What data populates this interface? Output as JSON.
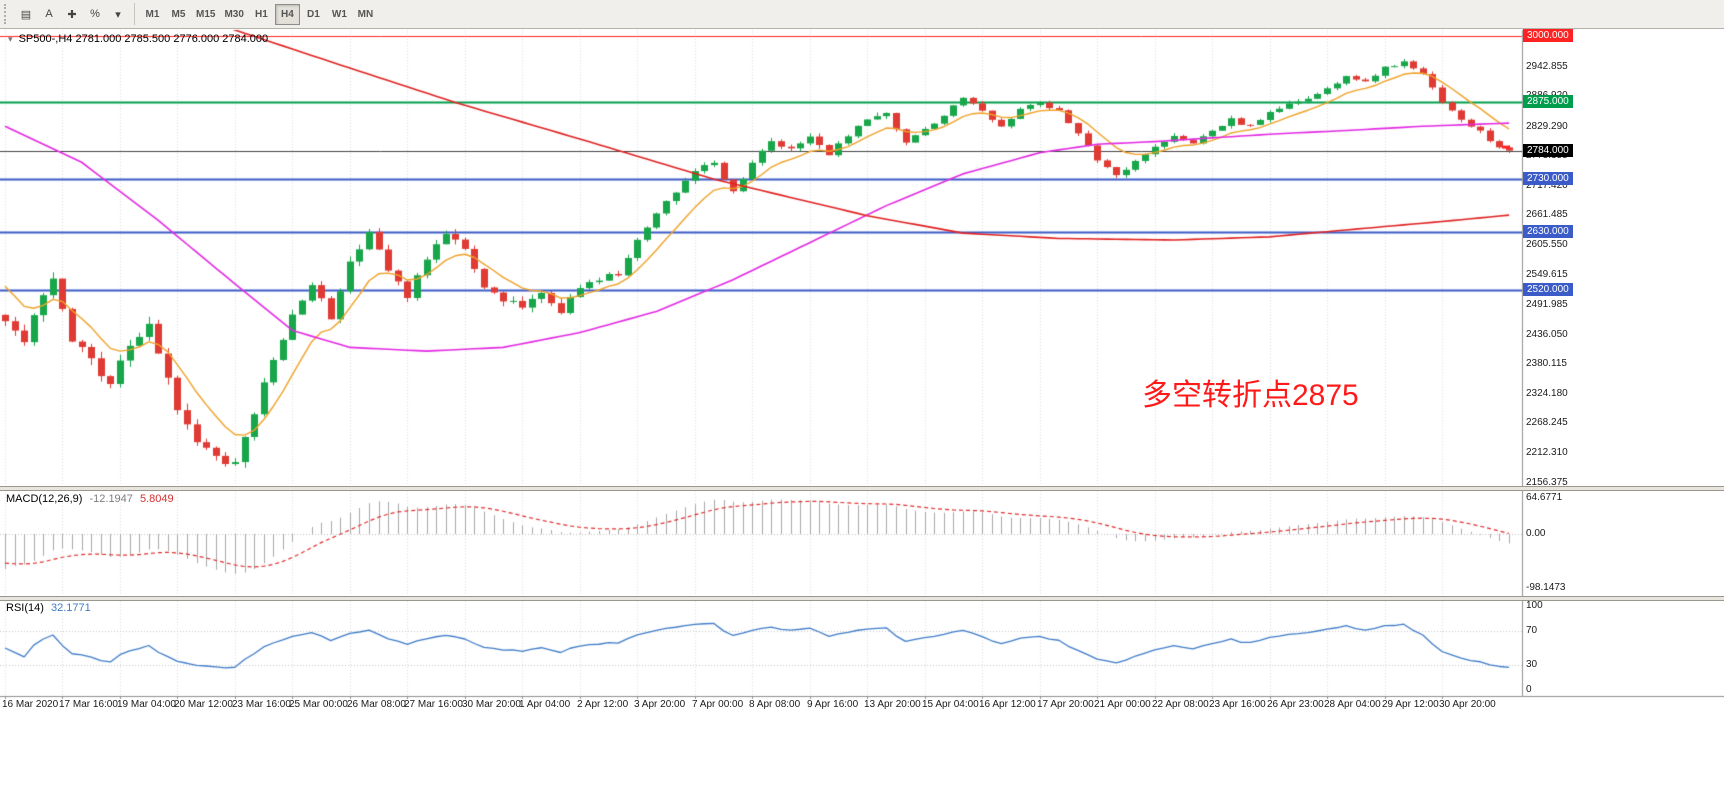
{
  "toolbar": {
    "tool_buttons": [
      {
        "name": "chart-templates-icon",
        "glyph": "▤"
      },
      {
        "name": "text-tool-icon",
        "glyph": "A"
      },
      {
        "name": "crosshair-icon",
        "glyph": "✚"
      },
      {
        "name": "percent-scale-icon",
        "glyph": "%"
      },
      {
        "name": "dropdown-caret-icon",
        "glyph": "▾"
      }
    ],
    "timeframes": [
      {
        "label": "M1",
        "active": false
      },
      {
        "label": "M5",
        "active": false
      },
      {
        "label": "M15",
        "active": false
      },
      {
        "label": "M30",
        "active": false
      },
      {
        "label": "H1",
        "active": false
      },
      {
        "label": "H4",
        "active": true
      },
      {
        "label": "D1",
        "active": false
      },
      {
        "label": "W1",
        "active": false
      },
      {
        "label": "MN",
        "active": false
      }
    ]
  },
  "info_line": {
    "icon": "▾",
    "symbol": "SP500-,H4",
    "ohlc": "2781.000 2785.500 2776.000 2784.000"
  },
  "annotation": {
    "text": "多空转折点2875",
    "color": "#ff1a1a"
  },
  "panels": {
    "macd": {
      "name": "MACD(12,26,9)",
      "main_value": "-12.1947",
      "signal_value": "5.8049",
      "axis": [
        {
          "text": "64.6771",
          "value": 64.6771
        },
        {
          "text": "0.00",
          "value": 0
        },
        {
          "text": "-98.1473",
          "value": -98.1473
        }
      ]
    },
    "rsi": {
      "name": "RSI(14)",
      "value": "32.1771",
      "axis": [
        {
          "text": "100",
          "value": 100
        },
        {
          "text": "70",
          "value": 70
        },
        {
          "text": "30",
          "value": 30
        },
        {
          "text": "0",
          "value": 0
        }
      ]
    }
  },
  "price_axis": {
    "labels": [
      "2942.855",
      "2886.920",
      "2829.290",
      "2773.355",
      "2717.420",
      "2661.485",
      "2605.550",
      "2549.615",
      "2491.985",
      "2436.050",
      "2380.115",
      "2324.180",
      "2268.245",
      "2212.310",
      "2156.375"
    ]
  },
  "time_axis": {
    "labels": [
      "16 Mar 2020",
      "17 Mar 16:00",
      "19 Mar 04:00",
      "20 Mar 12:00",
      "23 Mar 16:00",
      "25 Mar 00:00",
      "26 Mar 08:00",
      "27 Mar 16:00",
      "30 Mar 20:00",
      "1 Apr 04:00",
      "2 Apr 12:00",
      "3 Apr 20:00",
      "7 Apr 00:00",
      "8 Apr 08:00",
      "9 Apr 16:00",
      "13 Apr 20:00",
      "15 Apr 04:00",
      "16 Apr 12:00",
      "17 Apr 20:00",
      "21 Apr 00:00",
      "22 Apr 08:00",
      "23 Apr 16:00",
      "26 Apr 23:00",
      "28 Apr 04:00",
      "29 Apr 12:00",
      "30 Apr 20:00"
    ],
    "tick_indices": [
      0,
      6,
      12,
      18,
      24,
      30,
      36,
      42,
      48,
      54,
      60,
      66,
      72,
      78,
      84,
      90,
      96,
      102,
      108,
      114,
      120,
      126,
      132,
      138,
      144,
      150
    ]
  },
  "chart_data": {
    "type": "candlestick",
    "symbol": "SP500-",
    "timeframe": "H4",
    "bars": 158,
    "price_range": {
      "min": 2150,
      "max": 3012
    },
    "macd_range": {
      "min": -112,
      "max": 78
    },
    "rsi_range": {
      "min": -6,
      "max": 106
    },
    "ohlc_last": {
      "open": 2781.0,
      "high": 2785.5,
      "low": 2776.0,
      "close": 2784.0
    },
    "current_price": {
      "value": 2784.0,
      "label": "2784.000",
      "color": "#000000"
    },
    "hlines": [
      {
        "price": 3000,
        "color": "#ff2222",
        "width": 1,
        "label": "3000.000"
      },
      {
        "price": 2875,
        "color": "#009e4c",
        "width": 2,
        "label": "2875.000"
      },
      {
        "price": 2730,
        "color": "#3a5bc8",
        "width": 2,
        "label": "2730.000"
      },
      {
        "price": 2630,
        "color": "#3a5bc8",
        "width": 2,
        "label": "2630.000"
      },
      {
        "price": 2520,
        "color": "#3a5bc8",
        "width": 2,
        "label": "2520.000"
      }
    ],
    "close_anchors": [
      [
        0,
        2470
      ],
      [
        2,
        2420
      ],
      [
        3,
        2480
      ],
      [
        5,
        2545
      ],
      [
        7,
        2430
      ],
      [
        9,
        2390
      ],
      [
        11,
        2340
      ],
      [
        13,
        2420
      ],
      [
        15,
        2450
      ],
      [
        17,
        2360
      ],
      [
        18,
        2300
      ],
      [
        20,
        2240
      ],
      [
        22,
        2205
      ],
      [
        24,
        2195
      ],
      [
        26,
        2290
      ],
      [
        28,
        2390
      ],
      [
        30,
        2470
      ],
      [
        32,
        2535
      ],
      [
        34,
        2470
      ],
      [
        36,
        2575
      ],
      [
        38,
        2630
      ],
      [
        40,
        2555
      ],
      [
        42,
        2510
      ],
      [
        44,
        2575
      ],
      [
        46,
        2632
      ],
      [
        48,
        2598
      ],
      [
        50,
        2525
      ],
      [
        52,
        2498
      ],
      [
        54,
        2492
      ],
      [
        56,
        2515
      ],
      [
        58,
        2478
      ],
      [
        60,
        2528
      ],
      [
        62,
        2542
      ],
      [
        64,
        2552
      ],
      [
        66,
        2612
      ],
      [
        68,
        2665
      ],
      [
        70,
        2705
      ],
      [
        72,
        2745
      ],
      [
        74,
        2762
      ],
      [
        76,
        2705
      ],
      [
        78,
        2762
      ],
      [
        80,
        2802
      ],
      [
        82,
        2788
      ],
      [
        84,
        2812
      ],
      [
        86,
        2778
      ],
      [
        88,
        2815
      ],
      [
        90,
        2842
      ],
      [
        92,
        2852
      ],
      [
        94,
        2798
      ],
      [
        96,
        2822
      ],
      [
        98,
        2852
      ],
      [
        100,
        2882
      ],
      [
        102,
        2858
      ],
      [
        104,
        2832
      ],
      [
        106,
        2862
      ],
      [
        108,
        2876
      ],
      [
        110,
        2858
      ],
      [
        112,
        2818
      ],
      [
        114,
        2768
      ],
      [
        116,
        2738
      ],
      [
        118,
        2762
      ],
      [
        120,
        2792
      ],
      [
        122,
        2812
      ],
      [
        124,
        2800
      ],
      [
        126,
        2822
      ],
      [
        128,
        2842
      ],
      [
        130,
        2830
      ],
      [
        132,
        2858
      ],
      [
        134,
        2872
      ],
      [
        136,
        2882
      ],
      [
        138,
        2902
      ],
      [
        140,
        2922
      ],
      [
        142,
        2912
      ],
      [
        144,
        2940
      ],
      [
        146,
        2952
      ],
      [
        148,
        2928
      ],
      [
        150,
        2878
      ],
      [
        152,
        2842
      ],
      [
        154,
        2822
      ],
      [
        155,
        2805
      ],
      [
        156,
        2792
      ],
      [
        157,
        2784
      ]
    ],
    "ma_fast_period": 8,
    "ma_magenta_anchors": [
      [
        0,
        2830
      ],
      [
        8,
        2762
      ],
      [
        16,
        2652
      ],
      [
        24,
        2532
      ],
      [
        30,
        2444
      ],
      [
        36,
        2412
      ],
      [
        44,
        2405
      ],
      [
        52,
        2412
      ],
      [
        60,
        2440
      ],
      [
        68,
        2480
      ],
      [
        76,
        2540
      ],
      [
        84,
        2610
      ],
      [
        92,
        2680
      ],
      [
        100,
        2740
      ],
      [
        108,
        2780
      ],
      [
        114,
        2796
      ],
      [
        120,
        2801
      ],
      [
        126,
        2808
      ],
      [
        132,
        2815
      ],
      [
        140,
        2822
      ],
      [
        148,
        2830
      ],
      [
        157,
        2836
      ]
    ],
    "ma_red_anchors": [
      [
        0,
        3160
      ],
      [
        24,
        3012
      ],
      [
        35,
        2946
      ],
      [
        47,
        2875
      ],
      [
        60,
        2806
      ],
      [
        74,
        2730
      ],
      [
        90,
        2661
      ],
      [
        100,
        2628
      ],
      [
        110,
        2618
      ],
      [
        122,
        2615
      ],
      [
        132,
        2621
      ],
      [
        140,
        2634
      ],
      [
        150,
        2650
      ],
      [
        157,
        2662
      ]
    ],
    "macd_last": {
      "main": -12.1947,
      "signal": 5.8049
    },
    "rsi_last": 32.1771,
    "colors": {
      "up": "#18a64a",
      "down": "#e03a34",
      "ma_fast": "#f0a229",
      "ma_mid": "#e32ae3",
      "ma_slow": "#e02222",
      "macd_hist": "#a8a8a8",
      "macd_signal": "#e03030",
      "rsi": "#3f7cc8",
      "grid": "#dedede"
    }
  }
}
